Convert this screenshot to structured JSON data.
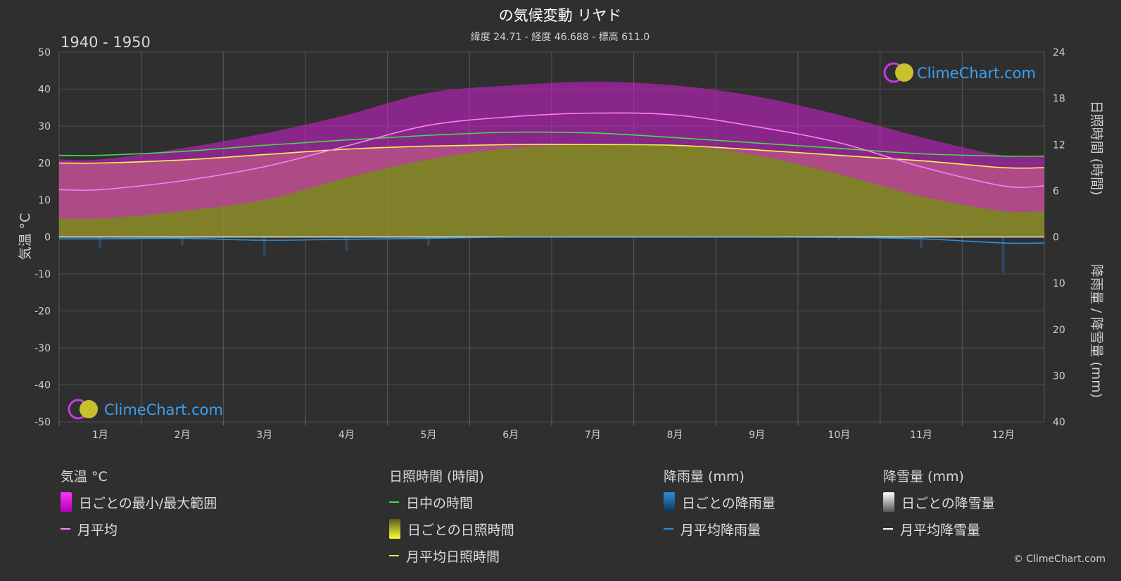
{
  "title": "の気候変動 リヤド",
  "subtitle": "緯度 24.71 - 経度 46.688 - 標高 611.0",
  "period": "1940 - 1950",
  "watermark": "ClimeChart.com",
  "copyright": "© ClimeChart.com",
  "colors": {
    "background": "#2f2f2f",
    "temp_range": "#e020e0",
    "temp_mean": "#ff7cff",
    "daylight": "#44dd44",
    "sunshine_fill": "#9b9b2c",
    "sunshine_mean": "#ffee55",
    "rain": "#2a8fe0",
    "snow": "#ffffff"
  },
  "legend": {
    "temperature": {
      "heading": "気温 °C",
      "items": [
        {
          "label": "日ごとの最小/最大範囲",
          "icon": "magenta-range-swatch"
        },
        {
          "label": "月平均",
          "icon": "pink-line-swatch"
        }
      ]
    },
    "sunshine": {
      "heading": "日照時間 (時間)",
      "items": [
        {
          "label": "日中の時間",
          "icon": "green-line-swatch"
        },
        {
          "label": "日ごとの日照時間",
          "icon": "yellow-range-swatch"
        },
        {
          "label": "月平均日照時間",
          "icon": "yellow-line-swatch"
        }
      ]
    },
    "rain": {
      "heading": "降雨量 (mm)",
      "items": [
        {
          "label": "日ごとの降雨量",
          "icon": "blue-bar-swatch"
        },
        {
          "label": "月平均降雨量",
          "icon": "blue-line-swatch"
        }
      ]
    },
    "snow": {
      "heading": "降雪量 (mm)",
      "items": [
        {
          "label": "日ごとの降雪量",
          "icon": "white-bar-swatch"
        },
        {
          "label": "月平均降雪量",
          "icon": "white-line-swatch"
        }
      ]
    }
  },
  "chart_data": {
    "type": "line",
    "x": [
      "1月",
      "2月",
      "3月",
      "4月",
      "5月",
      "6月",
      "7月",
      "8月",
      "9月",
      "10月",
      "11月",
      "12月"
    ],
    "ylabel_left": "気温 °C",
    "ylabel_right_top": "日照時間 (時間)",
    "ylabel_right_bottom": "降雨量 / 降雪量 (mm)",
    "ylim_left": [
      -50,
      50
    ],
    "yticks_left": [
      50,
      40,
      30,
      20,
      10,
      0,
      -10,
      -20,
      -30,
      -40,
      -50
    ],
    "ylim_right_hours": [
      0,
      24
    ],
    "yticks_right_hours": [
      24,
      18,
      12,
      6,
      0
    ],
    "ylim_right_mm": [
      0,
      40
    ],
    "yticks_right_mm": [
      10,
      20,
      30,
      40
    ],
    "grid": true,
    "series": [
      {
        "name": "月平均",
        "axis": "temperature_c",
        "values": [
          12.8,
          15.2,
          19.0,
          24.6,
          30.2,
          32.5,
          33.5,
          33.0,
          29.8,
          25.5,
          19.0,
          13.8
        ]
      },
      {
        "name": "日ごとの最小/最大範囲",
        "axis": "temperature_c",
        "min": [
          5,
          7,
          10,
          16,
          21,
          24,
          25,
          25,
          22,
          17,
          11,
          7
        ],
        "max": [
          21,
          24,
          28,
          33,
          39,
          41,
          42,
          41,
          38,
          33,
          27,
          22
        ]
      },
      {
        "name": "日中の時間",
        "axis": "hours",
        "values": [
          10.6,
          11.1,
          11.9,
          12.6,
          13.2,
          13.6,
          13.5,
          12.9,
          12.2,
          11.5,
          10.8,
          10.5
        ]
      },
      {
        "name": "月平均日照時間",
        "axis": "hours",
        "values": [
          9.6,
          10.0,
          10.7,
          11.4,
          11.8,
          12.0,
          12.0,
          11.9,
          11.3,
          10.6,
          9.9,
          9.0
        ]
      },
      {
        "name": "月平均降雨量",
        "axis": "mm",
        "values": [
          0.4,
          0.3,
          0.7,
          0.5,
          0.3,
          0.0,
          0.0,
          0.0,
          0.0,
          0.1,
          0.4,
          1.3
        ]
      },
      {
        "name": "月平均降雪量",
        "axis": "mm",
        "values": [
          0,
          0,
          0,
          0,
          0,
          0,
          0,
          0,
          0,
          0,
          0,
          0
        ]
      }
    ]
  }
}
